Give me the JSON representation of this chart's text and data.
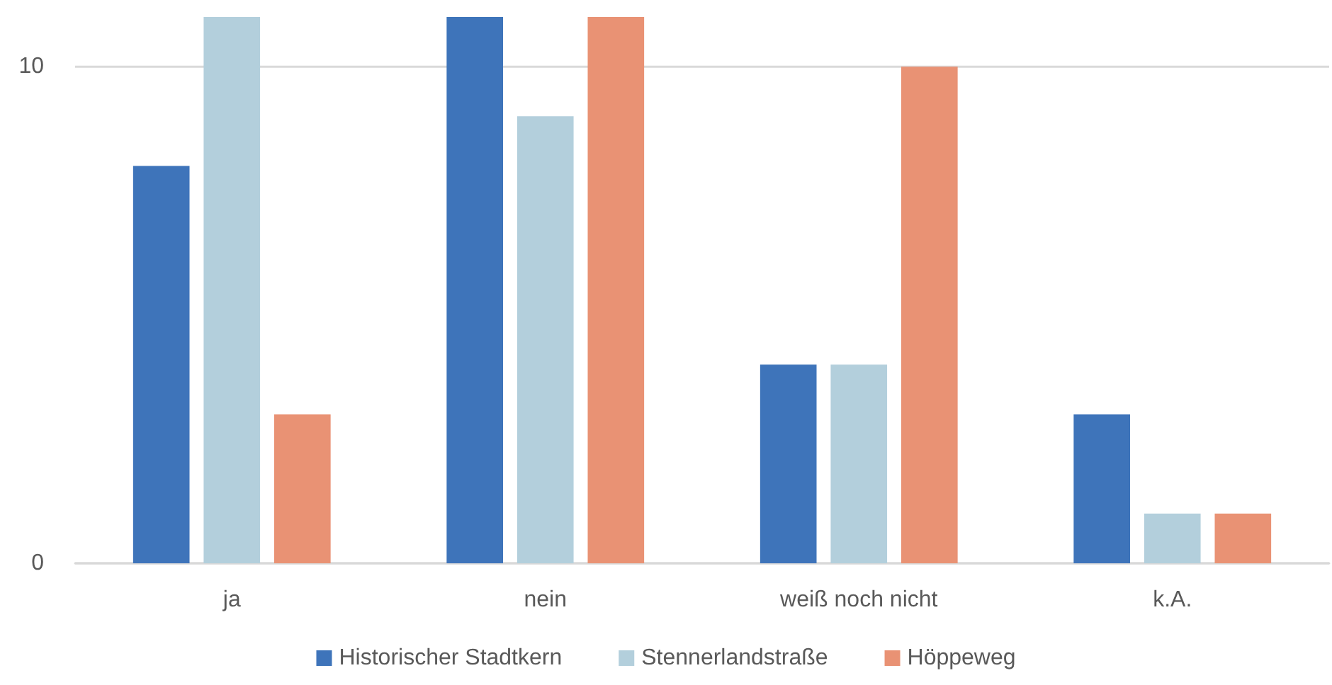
{
  "chart_data": {
    "type": "bar",
    "categories": [
      "ja",
      "nein",
      "weiß noch nicht",
      "k.A."
    ],
    "series": [
      {
        "name": "Historischer Stadtkern",
        "color": "#3e74ba",
        "values": [
          8,
          11,
          4,
          3
        ]
      },
      {
        "name": "Stennerlandstraße",
        "color": "#b3cfdc",
        "values": [
          11,
          9,
          4,
          1
        ]
      },
      {
        "name": "Höppeweg",
        "color": "#e99274",
        "values": [
          3,
          11,
          10,
          1
        ]
      }
    ],
    "ylim": [
      0,
      11
    ],
    "yticks": [
      0,
      10
    ],
    "grid": "y",
    "legend": "bottom"
  }
}
